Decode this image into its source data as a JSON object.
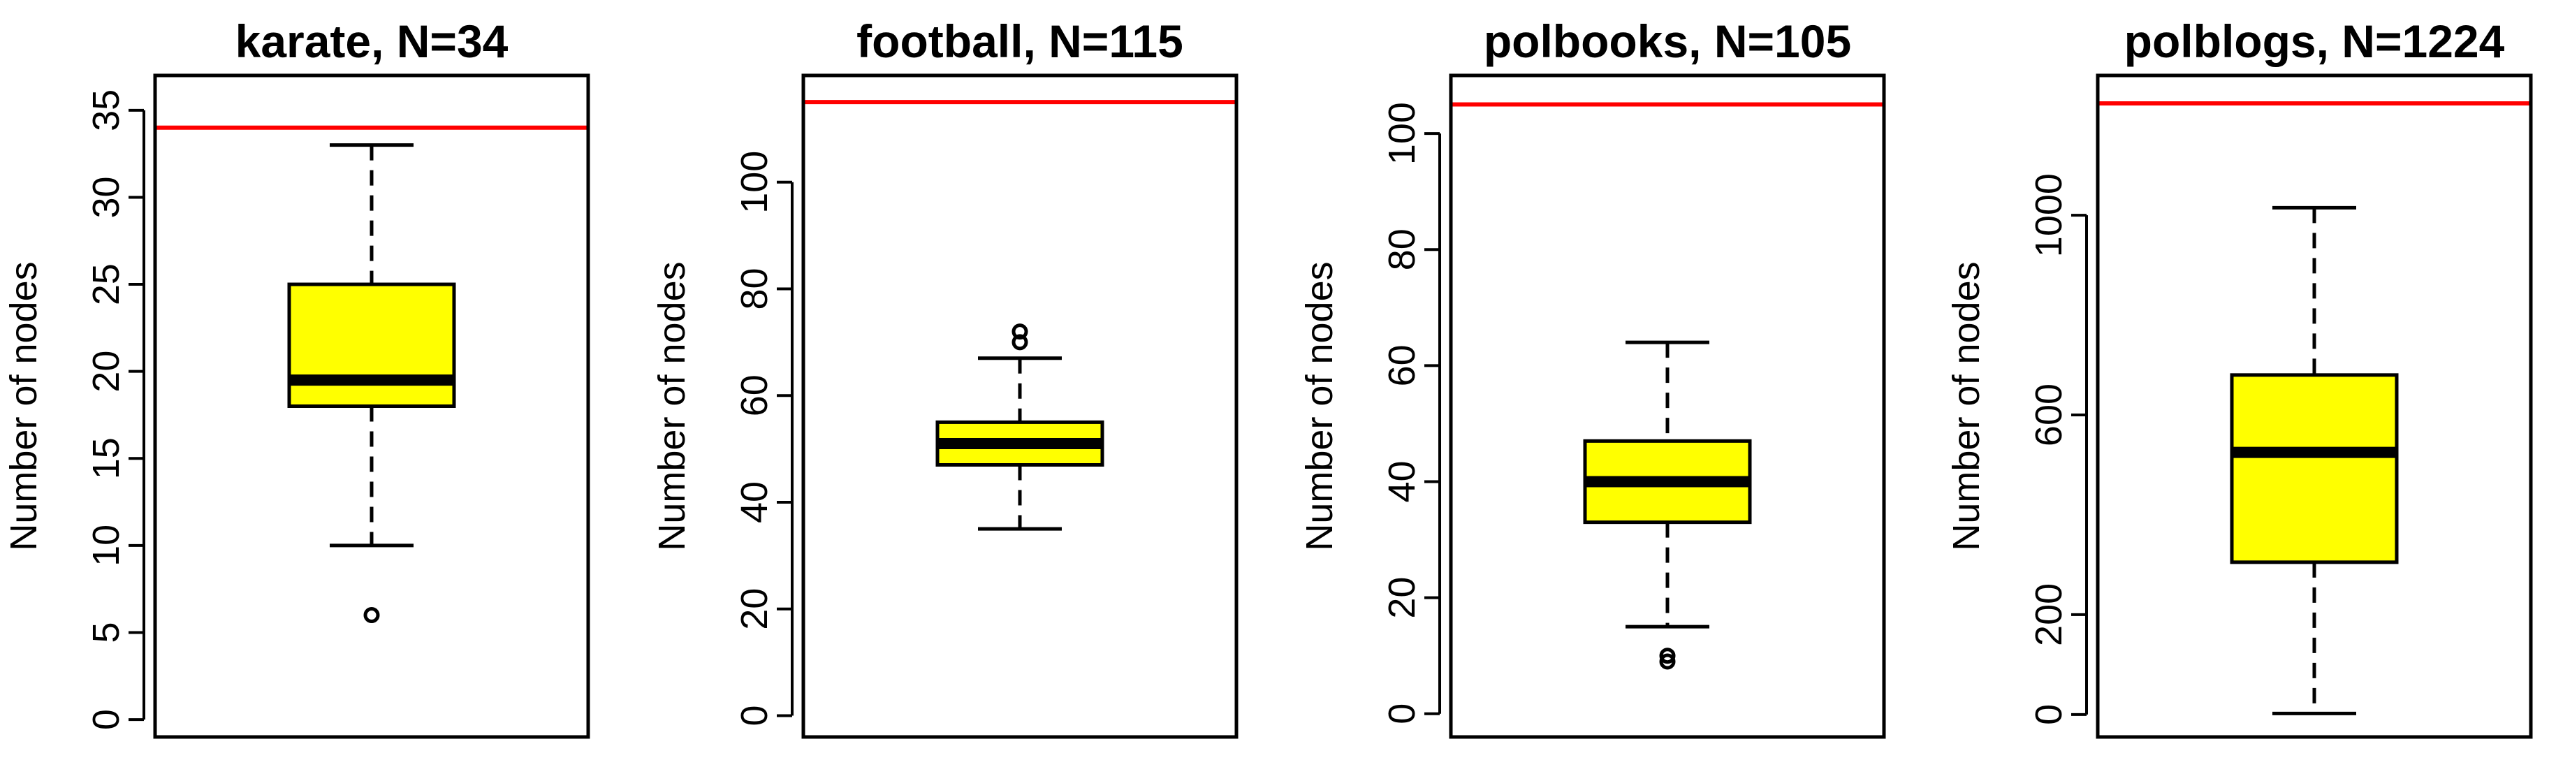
{
  "chart_data": [
    {
      "type": "box",
      "title": "karate, N=34",
      "ylabel": "Number of nodes",
      "ylim": [
        -1,
        37
      ],
      "yticks": [
        0,
        5,
        10,
        15,
        20,
        25,
        30,
        35
      ],
      "reference_line": 34,
      "box": {
        "whisker_low": 10,
        "q1": 18,
        "median": 19.5,
        "q3": 25,
        "whisker_high": 33
      },
      "outliers": [
        6
      ]
    },
    {
      "type": "box",
      "title": "football, N=115",
      "ylabel": "Number of nodes",
      "ylim": [
        -4,
        120
      ],
      "yticks": [
        0,
        20,
        40,
        60,
        80,
        100
      ],
      "reference_line": 115,
      "box": {
        "whisker_low": 35,
        "q1": 47,
        "median": 51,
        "q3": 55,
        "whisker_high": 67
      },
      "outliers": [
        70,
        72
      ]
    },
    {
      "type": "box",
      "title": "polbooks, N=105",
      "ylabel": "Number of nodes",
      "ylim": [
        -4,
        110
      ],
      "yticks": [
        0,
        20,
        40,
        60,
        80,
        100
      ],
      "reference_line": 105,
      "box": {
        "whisker_low": 15,
        "q1": 33,
        "median": 40,
        "q3": 47,
        "whisker_high": 64
      },
      "outliers": [
        9,
        10
      ]
    },
    {
      "type": "box",
      "title": "polblogs, N=1224",
      "ylabel": "Number of nodes",
      "ylim": [
        -45,
        1280
      ],
      "yticks": [
        0,
        200,
        600,
        1000
      ],
      "reference_line": 1224,
      "box": {
        "whisker_low": 2,
        "q1": 305,
        "median": 525,
        "q3": 680,
        "whisker_high": 1015
      },
      "outliers": []
    }
  ],
  "colors": {
    "box_fill": "#ffff00",
    "reference_line": "#ff0000",
    "ink": "#000000"
  }
}
